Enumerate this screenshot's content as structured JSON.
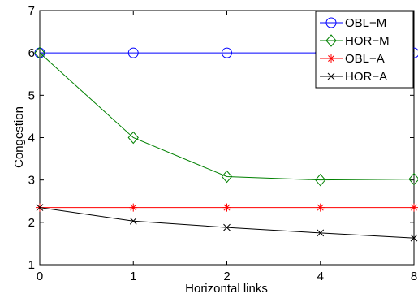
{
  "chart_data": {
    "type": "line",
    "title": "",
    "xlabel": "Horizontal links",
    "ylabel": "Congestion",
    "categories": [
      "0",
      "1",
      "2",
      "4",
      "8"
    ],
    "ylim": [
      1,
      7
    ],
    "yticks": [
      "1",
      "2",
      "3",
      "4",
      "5",
      "6",
      "7"
    ],
    "grid": false,
    "legend_position": "top-right",
    "series": [
      {
        "name": "OBL−M",
        "color": "#0000ff",
        "marker": "circle",
        "values": [
          6,
          6,
          6,
          6,
          6
        ]
      },
      {
        "name": "HOR−M",
        "color": "#008000",
        "marker": "diamond",
        "values": [
          6,
          4,
          3.08,
          3.0,
          3.02
        ]
      },
      {
        "name": "OBL−A",
        "color": "#ff0000",
        "marker": "asterisk",
        "values": [
          2.35,
          2.35,
          2.35,
          2.35,
          2.35
        ]
      },
      {
        "name": "HOR−A",
        "color": "#000000",
        "marker": "x",
        "values": [
          2.35,
          2.03,
          1.88,
          1.75,
          1.63
        ]
      }
    ]
  }
}
